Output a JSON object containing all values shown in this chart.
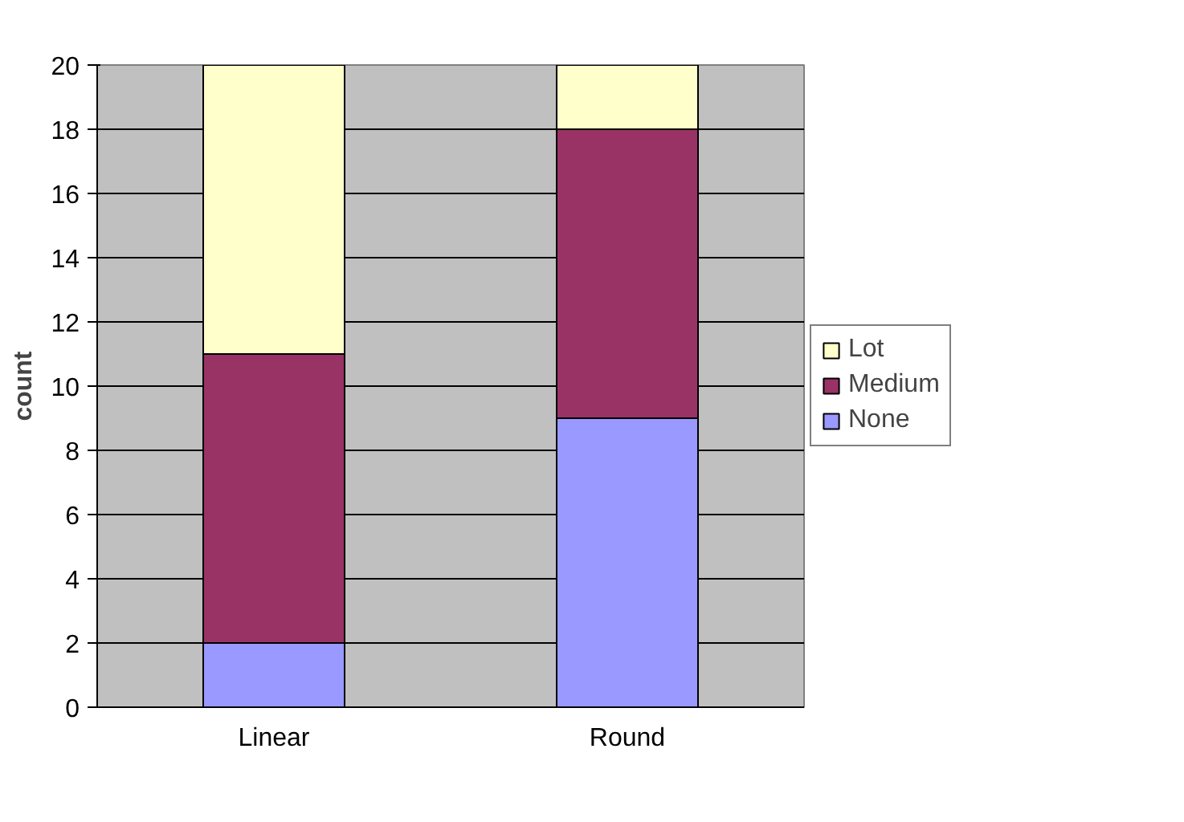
{
  "chart_data": {
    "type": "bar",
    "stacked": true,
    "ylabel": "count",
    "categories": [
      "Linear",
      "Round"
    ],
    "series": [
      {
        "name": "None",
        "color": "#9999ff",
        "values": [
          2,
          9
        ]
      },
      {
        "name": "Medium",
        "color": "#993366",
        "values": [
          9,
          9
        ]
      },
      {
        "name": "Lot",
        "color": "#ffffcc",
        "values": [
          9,
          2
        ]
      }
    ],
    "ylim": [
      0,
      20
    ],
    "yticks": [
      0,
      2,
      4,
      6,
      8,
      10,
      12,
      14,
      16,
      18,
      20
    ],
    "grid": "y",
    "legend": "right"
  }
}
